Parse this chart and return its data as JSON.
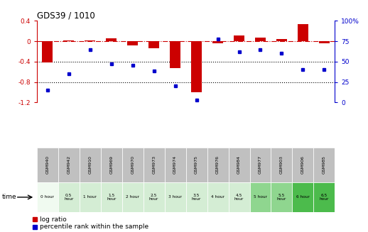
{
  "title": "GDS39 / 1010",
  "samples": [
    "GSM940",
    "GSM942",
    "GSM910",
    "GSM969",
    "GSM970",
    "GSM973",
    "GSM974",
    "GSM975",
    "GSM976",
    "GSM984",
    "GSM977",
    "GSM903",
    "GSM906",
    "GSM985"
  ],
  "time_labels": [
    "0 hour",
    "0.5\nhour",
    "1 hour",
    "1.5\nhour",
    "2 hour",
    "2.5\nhour",
    "3 hour",
    "3.5\nhour",
    "4 hour",
    "4.5\nhour",
    "5 hour",
    "5.5\nhour",
    "6 hour",
    "6.5\nhour"
  ],
  "time_colors": [
    "#f0faf0",
    "#d4edd4",
    "#d4edd4",
    "#d4edd4",
    "#d4edd4",
    "#d4edd4",
    "#d4edd4",
    "#d4edd4",
    "#d4edd4",
    "#d4edd4",
    "#8fd68f",
    "#8fd68f",
    "#4cbb4c",
    "#4cbb4c"
  ],
  "log_ratio": [
    -0.42,
    0.02,
    0.02,
    0.06,
    -0.08,
    -0.13,
    -0.52,
    -1.0,
    -0.04,
    0.12,
    0.07,
    0.05,
    0.34,
    -0.04
  ],
  "percentile": [
    15,
    35,
    65,
    47,
    46,
    39,
    20,
    3,
    78,
    62,
    65,
    60,
    40,
    40
  ],
  "ylim_left": [
    -1.2,
    0.4
  ],
  "ylim_right": [
    0,
    100
  ],
  "yticks_left": [
    -1.2,
    -0.8,
    -0.4,
    0.0,
    0.4
  ],
  "yticks_right": [
    0,
    25,
    50,
    75,
    100
  ],
  "ytick_labels_left": [
    "-1.2",
    "-0.8",
    "-0.4",
    "0",
    "0.4"
  ],
  "ytick_labels_right": [
    "0",
    "25",
    "50",
    "75",
    "100%"
  ],
  "bar_color": "#cc0000",
  "dot_color": "#0000cc",
  "hline_color": "#cc0000",
  "dotted_color": "#000000",
  "bg_color": "#ffffff",
  "sample_bg": "#c0c0c0",
  "legend_log_ratio": "log ratio",
  "legend_percentile": "percentile rank within the sample",
  "bar_width": 0.5
}
